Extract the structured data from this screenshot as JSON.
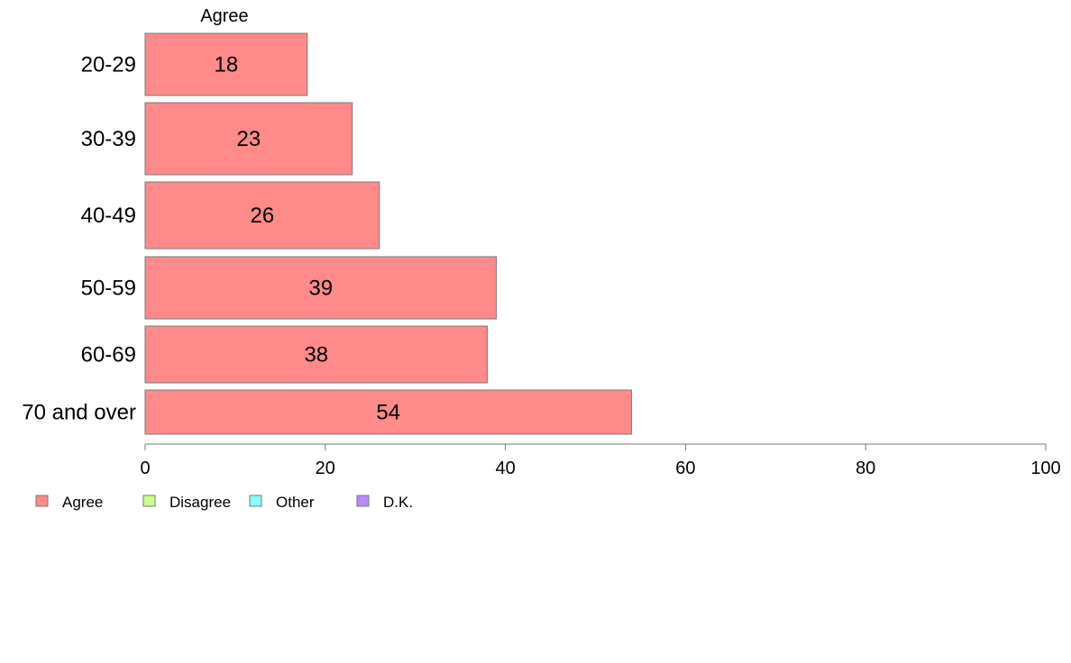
{
  "chart_data": {
    "type": "bar",
    "orientation": "horizontal",
    "stacked": true,
    "categories": [
      "20-29",
      "30-39",
      "40-49",
      "50-59",
      "60-69",
      "70 and over"
    ],
    "series": [
      {
        "name": "Agree",
        "color": "#ff8a8a",
        "values": [
          18,
          23,
          26,
          39,
          38,
          54
        ]
      }
    ],
    "column_header": "Agree",
    "data_labels": [
      "18",
      "23",
      "26",
      "39",
      "38",
      "54"
    ],
    "xlim": [
      0,
      100
    ],
    "xticks": [
      "0",
      "20",
      "40",
      "60",
      "80",
      "100"
    ],
    "grid": false,
    "legend": {
      "placement": "bottom-left",
      "entries": [
        {
          "name": "Agree",
          "color": "#ff8a8a"
        },
        {
          "name": "Disagree",
          "color": "#ccff8a"
        },
        {
          "name": "Other",
          "color": "#8affff"
        },
        {
          "name": "D.K.",
          "color": "#b98aff"
        }
      ]
    }
  }
}
